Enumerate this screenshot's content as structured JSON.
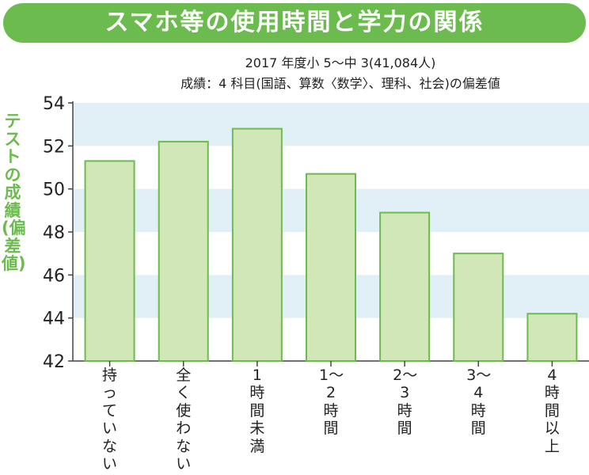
{
  "title": "スマホ等の使用時間と学力の関係",
  "subtitle_line1": "2017 年度小 5～中 3(41,084人)",
  "subtitle_line2": "成績：4 科目(国語、算数〈数学〉、理科、社会)の偏差値",
  "colors": {
    "title_bg": "#6cbb4e",
    "title_text": "#ffffff",
    "band": "#e1f0f6",
    "bar_fill": "#d2e7b8",
    "bar_stroke": "#6cbb4e",
    "ylabel": "#6cbb4e",
    "axis": "#444444"
  },
  "chart_data": {
    "type": "bar",
    "title": "スマホ等の使用時間と学力の関係",
    "subtitle": [
      "2017 年度小 5～中 3(41,084人)",
      "成績：4 科目(国語、算数〈数学〉、理科、社会)の偏差値"
    ],
    "ylabel": "テストの成績(偏差値)",
    "xlabel": "",
    "categories": [
      "持っていない",
      "全く使わない",
      "1時間未満",
      "1〜2時間",
      "2〜3時間",
      "3〜4時間",
      "4時間以上"
    ],
    "values": [
      51.3,
      52.2,
      52.8,
      50.7,
      48.9,
      47.0,
      44.2
    ],
    "ylim": [
      42,
      54
    ],
    "yticks": [
      42,
      44,
      46,
      48,
      50,
      52,
      54
    ],
    "grid": "alternating horizontal bands",
    "legend": "none"
  }
}
